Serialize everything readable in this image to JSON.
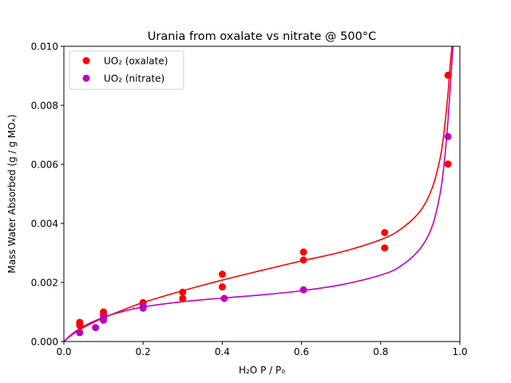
{
  "chart_data": {
    "type": "scatter",
    "title": "Urania from oxalate vs nitrate @ 500°C",
    "xlabel": "H₂O P / P₀",
    "ylabel": "Mass Water Absorbed (g / g MOₓ)",
    "xlim": [
      0.0,
      1.0
    ],
    "ylim": [
      0.0,
      0.01
    ],
    "xticks": [
      "0.0",
      "0.2",
      "0.4",
      "0.6",
      "0.8",
      "1.0"
    ],
    "yticks": [
      "0.000",
      "0.002",
      "0.004",
      "0.006",
      "0.008",
      "0.010"
    ],
    "grid": false,
    "legend_position": "top-left",
    "series": [
      {
        "name": "UO₂ (oxalate)",
        "color": "#ff0000",
        "points": [
          {
            "x": 0.04,
            "y": 0.00065
          },
          {
            "x": 0.04,
            "y": 0.00055
          },
          {
            "x": 0.1,
            "y": 0.001
          },
          {
            "x": 0.1,
            "y": 0.0009
          },
          {
            "x": 0.2,
            "y": 0.00132
          },
          {
            "x": 0.3,
            "y": 0.00167
          },
          {
            "x": 0.3,
            "y": 0.00145
          },
          {
            "x": 0.4,
            "y": 0.00228
          },
          {
            "x": 0.4,
            "y": 0.00185
          },
          {
            "x": 0.605,
            "y": 0.00303
          },
          {
            "x": 0.605,
            "y": 0.00276
          },
          {
            "x": 0.81,
            "y": 0.00369
          },
          {
            "x": 0.81,
            "y": 0.00317
          },
          {
            "x": 0.97,
            "y": 0.00902
          },
          {
            "x": 0.97,
            "y": 0.00601
          }
        ],
        "fit": [
          [
            0.0,
            0.0
          ],
          [
            0.02,
            0.00022
          ],
          [
            0.05,
            0.00048
          ],
          [
            0.1,
            0.0008
          ],
          [
            0.15,
            0.00107
          ],
          [
            0.2,
            0.00132
          ],
          [
            0.3,
            0.00172
          ],
          [
            0.4,
            0.00208
          ],
          [
            0.5,
            0.00241
          ],
          [
            0.6,
            0.00273
          ],
          [
            0.7,
            0.00303
          ],
          [
            0.8,
            0.00345
          ],
          [
            0.85,
            0.0038
          ],
          [
            0.9,
            0.00442
          ],
          [
            0.93,
            0.0052
          ],
          [
            0.95,
            0.0062
          ],
          [
            0.96,
            0.0071
          ],
          [
            0.97,
            0.0084
          ],
          [
            0.975,
            0.0093
          ],
          [
            0.98,
            0.01
          ]
        ]
      },
      {
        "name": "UO₂ (nitrate)",
        "color": "#bf00bf",
        "points": [
          {
            "x": 0.04,
            "y": 0.0003
          },
          {
            "x": 0.08,
            "y": 0.00047
          },
          {
            "x": 0.1,
            "y": 0.00072
          },
          {
            "x": 0.1,
            "y": 0.0008
          },
          {
            "x": 0.2,
            "y": 0.00113
          },
          {
            "x": 0.2,
            "y": 0.0012
          },
          {
            "x": 0.405,
            "y": 0.00146
          },
          {
            "x": 0.605,
            "y": 0.00175
          },
          {
            "x": 0.97,
            "y": 0.00694
          }
        ],
        "fit": [
          [
            0.0,
            0.0
          ],
          [
            0.02,
            0.00025
          ],
          [
            0.05,
            0.00052
          ],
          [
            0.1,
            0.00082
          ],
          [
            0.15,
            0.00102
          ],
          [
            0.2,
            0.00117
          ],
          [
            0.3,
            0.00135
          ],
          [
            0.4,
            0.00147
          ],
          [
            0.5,
            0.00158
          ],
          [
            0.6,
            0.00172
          ],
          [
            0.7,
            0.00192
          ],
          [
            0.8,
            0.00225
          ],
          [
            0.85,
            0.00255
          ],
          [
            0.9,
            0.00315
          ],
          [
            0.93,
            0.0039
          ],
          [
            0.95,
            0.005
          ],
          [
            0.96,
            0.006
          ],
          [
            0.97,
            0.0075
          ],
          [
            0.98,
            0.0095
          ],
          [
            0.983,
            0.01
          ]
        ]
      }
    ]
  }
}
